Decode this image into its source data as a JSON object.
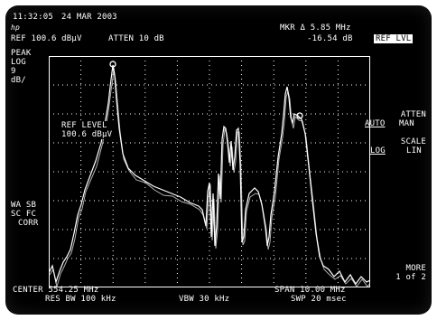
{
  "status": {
    "time": "11:32:05",
    "date": "24 MAR 2003",
    "hp_logo": "hp",
    "ref": "REF 100.6 dBµV",
    "atten": "ATTEN 10 dB",
    "marker_line1": "MKR Δ 5.85 MHz",
    "marker_line2": "-16.54 dB"
  },
  "left_panel": {
    "peak": "PEAK",
    "log": "LOG",
    "scale_value": "9",
    "scale_unit": "dB/",
    "wa_sb": "WA SB",
    "sc_fc": "SC FC",
    "corr": "CORR"
  },
  "ref_level_annotation": {
    "line1": "REF LEVEL",
    "line2": "100.6 dBµV"
  },
  "softkeys": {
    "ref_lvl": "REF LVL",
    "atten_title": "ATTEN",
    "atten_auto": "AUTO",
    "atten_man": "MAN",
    "scale_title": "SCALE",
    "scale_log": "LOG",
    "scale_lin": "LIN",
    "more_line1": "MORE",
    "more_line2": "1 of 2"
  },
  "footer": {
    "center": "CENTER 554.25 MHz",
    "span": "SPAN 10.00 MHz",
    "res_bw": "RES BW 100 kHz",
    "vbw": "VBW 30 kHz",
    "sweep": "SWP 20 msec"
  },
  "colors": {
    "background": "#000000",
    "trace": "#ffffff",
    "graticule": "#ffffff"
  }
}
